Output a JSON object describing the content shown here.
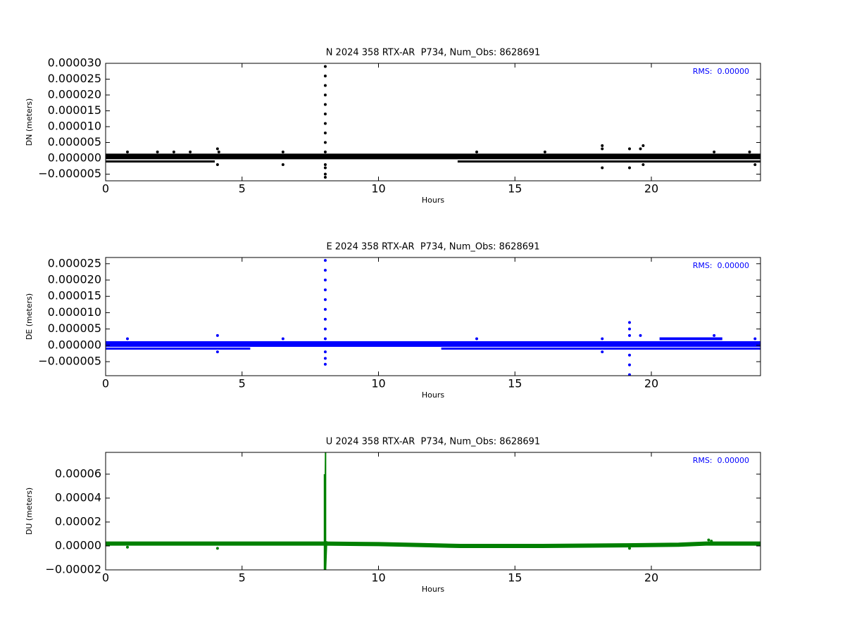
{
  "chart_data": [
    {
      "type": "scatter",
      "title": "N 2024 358 RTX-AR  P734, Num_Obs: 8628691",
      "xlabel": "Hours",
      "ylabel": "DN (meters)",
      "annotation": "RMS:  0.00000",
      "annotation_color": "#0000ff",
      "xlim": [
        0,
        24
      ],
      "xticks": [
        0,
        5,
        10,
        15,
        20
      ],
      "ylim": [
        -7.1e-06,
        3e-05
      ],
      "yticks": [
        {
          "value": -5e-06,
          "label": "−0.000005"
        },
        {
          "value": 0,
          "label": "0.000000"
        },
        {
          "value": 5e-06,
          "label": "0.000005"
        },
        {
          "value": 1e-05,
          "label": "0.000010"
        },
        {
          "value": 1.5e-05,
          "label": "0.000015"
        },
        {
          "value": 2e-05,
          "label": "0.000020"
        },
        {
          "value": 2.5e-05,
          "label": "0.000025"
        },
        {
          "value": 3e-05,
          "label": "0.000030"
        }
      ],
      "series": [
        {
          "color": "#000000",
          "mode": "line",
          "linewidth": 8,
          "x": [
            0,
            4,
            8,
            12,
            16,
            20,
            24
          ],
          "values": [
            6e-07,
            6e-07,
            6e-07,
            6e-07,
            6e-07,
            6e-07,
            6e-07
          ]
        },
        {
          "color": "#000000",
          "mode": "line",
          "linewidth": 3,
          "x": [
            0,
            3.5,
            4.0
          ],
          "values": [
            -1e-06,
            -1e-06,
            -1e-06
          ]
        },
        {
          "color": "#000000",
          "mode": "line",
          "linewidth": 3,
          "x": [
            12.9,
            24
          ],
          "values": [
            -1e-06,
            -1e-06
          ]
        },
        {
          "color": "#000000",
          "mode": "points",
          "x": [
            8.05,
            8.05,
            8.05,
            8.05,
            8.05,
            8.05,
            8.05,
            8.05,
            8.05,
            8.05,
            8.05,
            8.05,
            8.05,
            8.05,
            0.8,
            1.9,
            2.5,
            3.1,
            4.1,
            4.15,
            4.1,
            6.5,
            6.5,
            13.6,
            16.1,
            18.2,
            18.2,
            18.2,
            19.2,
            19.2,
            19.6,
            19.7,
            19.7,
            22.3,
            23.6,
            23.8
          ],
          "values": [
            2.9e-05,
            2.6e-05,
            2.3e-05,
            2e-05,
            1.7e-05,
            1.4e-05,
            1.1e-05,
            8e-06,
            5e-06,
            2e-06,
            -2e-06,
            -3e-06,
            -5e-06,
            -6e-06,
            2e-06,
            2e-06,
            2e-06,
            2e-06,
            3e-06,
            2e-06,
            -2e-06,
            2e-06,
            -2e-06,
            2e-06,
            2e-06,
            4e-06,
            3e-06,
            -3e-06,
            3e-06,
            -3e-06,
            3e-06,
            4e-06,
            -2e-06,
            2e-06,
            2e-06,
            -2e-06
          ]
        }
      ]
    },
    {
      "type": "scatter",
      "title": "E 2024 358 RTX-AR  P734, Num_Obs: 8628691",
      "xlabel": "Hours",
      "ylabel": "DE (meters)",
      "annotation": "RMS:  0.00000",
      "annotation_color": "#0000ff",
      "xlim": [
        0,
        24
      ],
      "xticks": [
        0,
        5,
        10,
        15,
        20
      ],
      "ylim": [
        -9.3e-06,
        2.69e-05
      ],
      "yticks": [
        {
          "value": -5e-06,
          "label": "−0.000005"
        },
        {
          "value": 0,
          "label": "0.000000"
        },
        {
          "value": 5e-06,
          "label": "0.000005"
        },
        {
          "value": 1e-05,
          "label": "0.000010"
        },
        {
          "value": 1.5e-05,
          "label": "0.000015"
        },
        {
          "value": 2e-05,
          "label": "0.000020"
        },
        {
          "value": 2.5e-05,
          "label": "0.000025"
        }
      ],
      "series": [
        {
          "color": "#0000ff",
          "mode": "line",
          "linewidth": 8,
          "x": [
            0,
            4,
            8,
            12,
            16,
            20,
            24
          ],
          "values": [
            4e-07,
            4e-07,
            4e-07,
            4e-07,
            4e-07,
            4e-07,
            4e-07
          ]
        },
        {
          "color": "#0000ff",
          "mode": "line",
          "linewidth": 3,
          "x": [
            0,
            4.5,
            5.3
          ],
          "values": [
            -1e-06,
            -1e-06,
            -1e-06
          ]
        },
        {
          "color": "#0000ff",
          "mode": "line",
          "linewidth": 3,
          "x": [
            12.3,
            24
          ],
          "values": [
            -1e-06,
            -1e-06
          ]
        },
        {
          "color": "#0000ff",
          "mode": "line",
          "linewidth": 4,
          "x": [
            20.3,
            22.6
          ],
          "values": [
            2e-06,
            2e-06
          ]
        },
        {
          "color": "#0000ff",
          "mode": "points",
          "x": [
            8.05,
            8.05,
            8.05,
            8.05,
            8.05,
            8.05,
            8.05,
            8.05,
            8.05,
            8.05,
            8.05,
            8.05,
            0.8,
            4.1,
            4.1,
            6.5,
            13.6,
            18.2,
            18.2,
            19.2,
            19.2,
            19.2,
            19.2,
            19.2,
            19.2,
            19.6,
            22.3,
            23.8
          ],
          "values": [
            2.6e-05,
            2.3e-05,
            2e-05,
            1.7e-05,
            1.4e-05,
            1.1e-05,
            8e-06,
            5e-06,
            2e-06,
            -2e-06,
            -4e-06,
            -5.8e-06,
            2e-06,
            3e-06,
            -2e-06,
            2e-06,
            2e-06,
            2e-06,
            -2e-06,
            7e-06,
            5e-06,
            3e-06,
            -3e-06,
            -6e-06,
            -9e-06,
            3e-06,
            3e-06,
            2e-06
          ]
        }
      ]
    },
    {
      "type": "scatter",
      "title": "U 2024 358 RTX-AR  P734, Num_Obs: 8628691",
      "xlabel": "Hours",
      "ylabel": "DU (meters)",
      "annotation": "RMS:  0.00000",
      "annotation_color": "#0000ff",
      "xlim": [
        0,
        24
      ],
      "xticks": [
        0,
        5,
        10,
        15,
        20
      ],
      "ylim": [
        -2e-05,
        7.82e-05
      ],
      "yticks": [
        {
          "value": -2e-05,
          "label": "−0.00002"
        },
        {
          "value": 0,
          "label": "0.00000"
        },
        {
          "value": 2e-05,
          "label": "0.00002"
        },
        {
          "value": 4e-05,
          "label": "0.00004"
        },
        {
          "value": 6e-05,
          "label": "0.00006"
        }
      ],
      "series": [
        {
          "color": "#008000",
          "mode": "line",
          "linewidth": 6,
          "x": [
            0,
            4,
            8,
            10,
            12,
            13,
            16,
            19,
            21,
            22,
            24
          ],
          "values": [
            2e-06,
            2e-06,
            2e-06,
            1.5e-06,
            5e-07,
            0,
            0,
            5e-07,
            1e-06,
            2e-06,
            2e-06
          ]
        },
        {
          "color": "#008000",
          "mode": "line",
          "linewidth": 2,
          "x": [
            8.02,
            8.02,
            8.06,
            8.06,
            8.1
          ],
          "values": [
            6e-05,
            -2e-05,
            7.82e-05,
            -2e-05,
            4e-06
          ]
        },
        {
          "color": "#008000",
          "mode": "points",
          "x": [
            0.8,
            4.1,
            19.2,
            22.1,
            22.2
          ],
          "values": [
            -1e-06,
            -2e-06,
            -2e-06,
            5e-06,
            4e-06
          ]
        }
      ]
    }
  ]
}
